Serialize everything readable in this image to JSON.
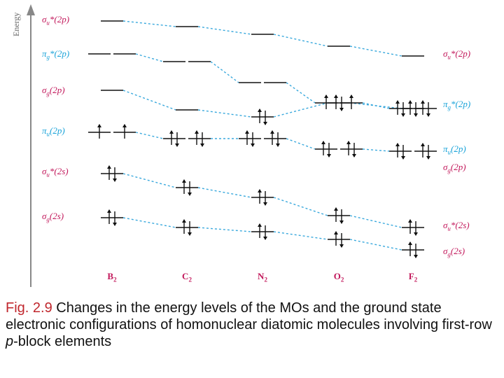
{
  "axis": {
    "label": "Energy"
  },
  "left_labels": [
    {
      "id": "su2p",
      "html": "σ<sub>u</sub>*(2p)"
    },
    {
      "id": "pg2p",
      "html": "π<sub>g</sub>*(2p)"
    },
    {
      "id": "sg2p",
      "html": "σ<sub>g</sub>(2p)"
    },
    {
      "id": "pu2p",
      "html": "π<sub>u</sub>(2p)"
    },
    {
      "id": "su2s",
      "html": "σ<sub>u</sub>*(2s)"
    },
    {
      "id": "sg2s",
      "html": "σ<sub>g</sub>(2s)"
    }
  ],
  "right_labels": [
    {
      "id": "su2p",
      "html": "σ<sub>u</sub>*(2p)"
    },
    {
      "id": "pg2p",
      "html": "π<sub>g</sub>*(2p)"
    },
    {
      "id": "pu2p",
      "html": "π<sub>u</sub>(2p)"
    },
    {
      "id": "sg2p",
      "html": "σ<sub>g</sub>(2p)"
    },
    {
      "id": "su2s",
      "html": "σ<sub>u</sub>*(2s)"
    },
    {
      "id": "sg2s",
      "html": "σ<sub>g</sub>(2s)"
    }
  ],
  "molecules": [
    {
      "html": "B<sub>2</sub>"
    },
    {
      "html": "C<sub>2</sub>"
    },
    {
      "html": "N<sub>2</sub>"
    },
    {
      "html": "O<sub>2</sub>"
    },
    {
      "html": "F<sub>2</sub>"
    }
  ],
  "electrons": {
    "su2p": [
      0,
      0,
      0,
      0,
      0
    ],
    "pg2p": [
      0,
      0,
      0,
      2,
      4
    ],
    "sg2p": [
      0,
      0,
      2,
      2,
      2
    ],
    "pu2p": [
      2,
      4,
      4,
      4,
      4
    ],
    "su2s": [
      2,
      2,
      2,
      2,
      2
    ],
    "sg2s": [
      2,
      2,
      2,
      2,
      2
    ]
  },
  "colors": {
    "sigma_label": "#c2185b",
    "pi_label": "#1aa3d9",
    "connector": "#3aa9dd",
    "level": "#111111",
    "axis": "#888888",
    "fig_label": "#c0272d"
  },
  "caption": {
    "fig": "Fig. 2.9",
    "text": " Changes in the energy levels of the MOs and the ground state electronic configurations of homonuclear diatomic molecules involving first-row ",
    "italic": "p",
    "tail": "-block elements"
  }
}
